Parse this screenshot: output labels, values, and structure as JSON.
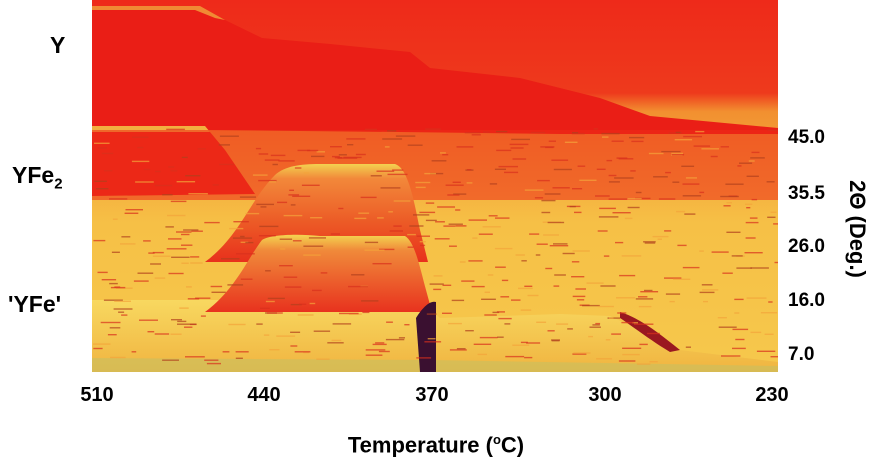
{
  "chart_data": {
    "type": "heatmap",
    "x": {
      "label_main": "Temperature (",
      "label_sup": "o",
      "label_end": "C)",
      "ticks": [
        "510",
        "440",
        "370",
        "300",
        "230"
      ],
      "range": [
        510,
        230
      ]
    },
    "y": {
      "label": "2Θ  (Deg.)",
      "ticks": [
        "45.0",
        "35.5",
        "26.0",
        "16.0",
        "7.0"
      ],
      "range": [
        3.5,
        55
      ]
    },
    "phases": [
      {
        "label": "Y",
        "sub": ""
      },
      {
        "label": "YFe",
        "sub": "2"
      },
      {
        "label": "'YFe'",
        "sub": ""
      }
    ],
    "colors": {
      "background_low": "#f6c248",
      "mid": "#ee6a1c",
      "high": "#ea1e16",
      "peak": "#f0d84a",
      "dark": "#3a1030"
    }
  }
}
